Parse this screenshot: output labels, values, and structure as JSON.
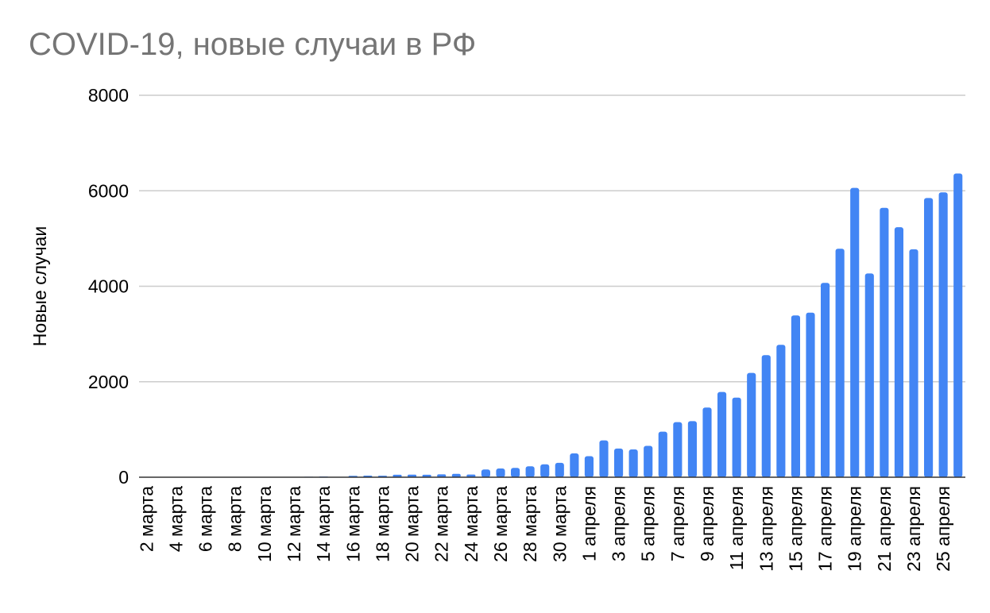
{
  "chart_data": {
    "type": "bar",
    "title": "COVID-19, новые случаи в РФ",
    "xlabel": "",
    "ylabel": "Новые случаи",
    "ylim": [
      0,
      8000
    ],
    "yticks": [
      0,
      2000,
      4000,
      6000,
      8000
    ],
    "grid": true,
    "bar_color": "#4285f4",
    "categories": [
      "2 марта",
      "3 марта",
      "4 марта",
      "5 марта",
      "6 марта",
      "7 марта",
      "8 марта",
      "9 марта",
      "10 марта",
      "11 марта",
      "12 марта",
      "13 марта",
      "14 марта",
      "15 марта",
      "16 марта",
      "17 марта",
      "18 марта",
      "19 марта",
      "20 марта",
      "21 марта",
      "22 марта",
      "23 марта",
      "24 марта",
      "25 марта",
      "26 марта",
      "27 марта",
      "28 марта",
      "29 марта",
      "30 марта",
      "31 марта",
      "1 апреля",
      "2 апреля",
      "3 апреля",
      "4 апреля",
      "5 апреля",
      "6 апреля",
      "7 апреля",
      "8 апреля",
      "9 апреля",
      "10 апреля",
      "11 апреля",
      "12 апреля",
      "13 апреля",
      "14 апреля",
      "15 апреля",
      "16 апреля",
      "17 апреля",
      "18 апреля",
      "19 апреля",
      "20 апреля",
      "21 апреля",
      "22 апреля",
      "23 апреля",
      "24 апреля",
      "25 апреля",
      "26 апреля"
    ],
    "tick_labels": [
      "2 марта",
      "4 марта",
      "6 марта",
      "8 марта",
      "10 марта",
      "12 марта",
      "14 марта",
      "16 марта",
      "18 марта",
      "20 марта",
      "22 марта",
      "24 марта",
      "26 марта",
      "28 марта",
      "30 марта",
      "1 апреля",
      "3 апреля",
      "5 апреля",
      "7 апреля",
      "9 апреля",
      "11 апреля",
      "13 апреля",
      "15 апреля",
      "17 апреля",
      "19 апреля",
      "21 апреля",
      "23 апреля",
      "25 апреля"
    ],
    "values": [
      1,
      0,
      0,
      1,
      6,
      0,
      3,
      1,
      3,
      8,
      6,
      11,
      14,
      4,
      30,
      33,
      32,
      52,
      54,
      53,
      61,
      71,
      57,
      163,
      182,
      196,
      228,
      270,
      302,
      500,
      440,
      771,
      601,
      582,
      658,
      954,
      1154,
      1175,
      1459,
      1786,
      1667,
      2186,
      2558,
      2774,
      3388,
      3448,
      4070,
      4785,
      6060,
      4268,
      5642,
      5236,
      4774,
      5849,
      5966,
      6361
    ]
  }
}
